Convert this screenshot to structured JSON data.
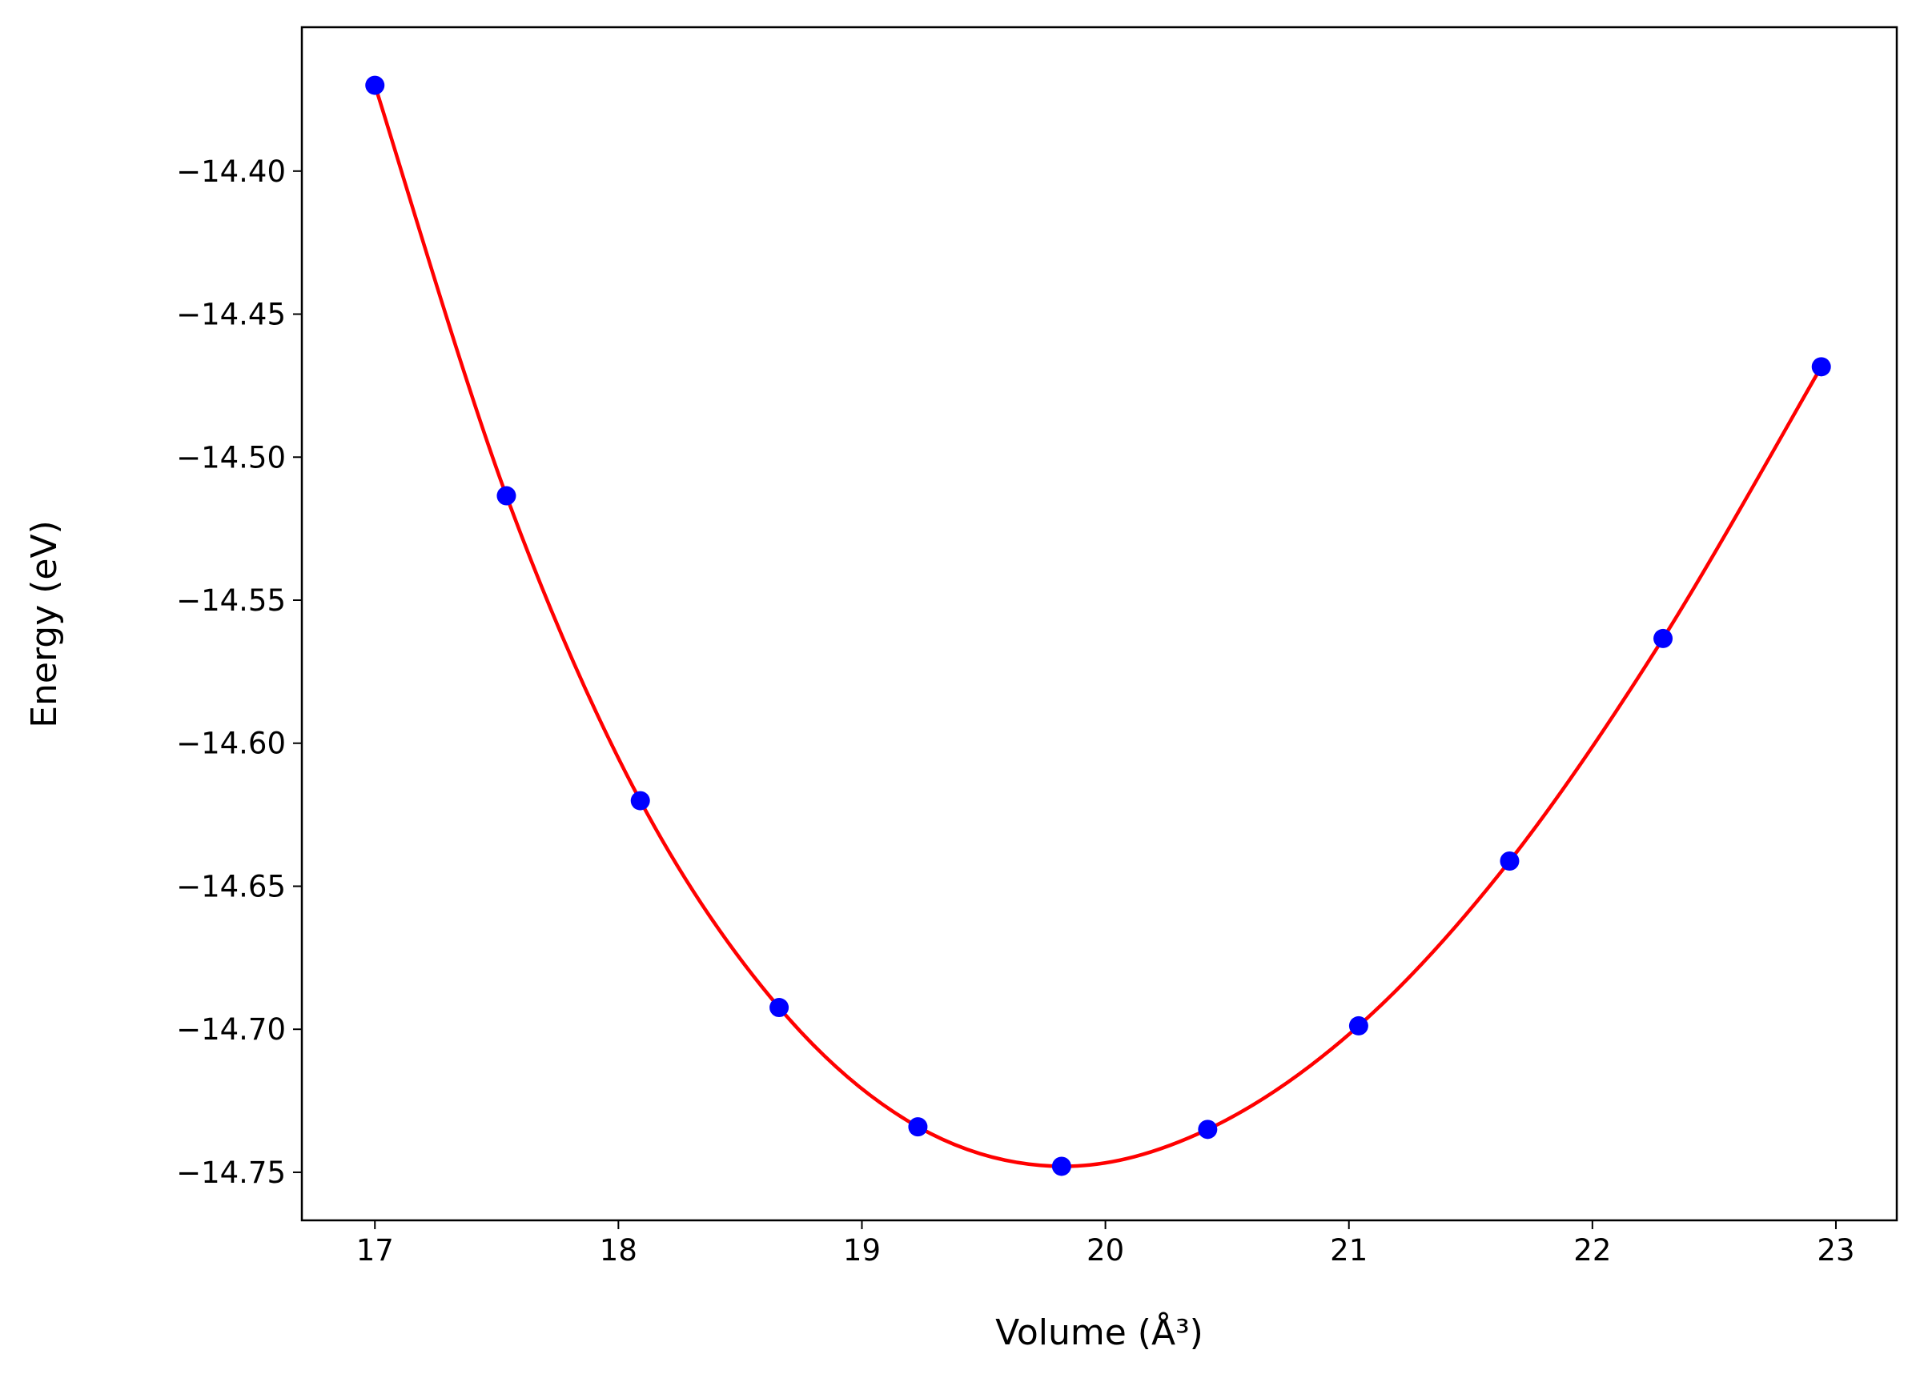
{
  "chart_data": {
    "type": "line",
    "x_label": "Volume (Å³)",
    "y_label": "Energy (eV)",
    "xlim": [
      16.7,
      23.25
    ],
    "ylim": [
      -14.7668,
      -14.3497
    ],
    "xticks": [
      17,
      18,
      19,
      20,
      21,
      22,
      23
    ],
    "yticks": [
      {
        "value": -14.4,
        "label": "−14.40"
      },
      {
        "value": -14.45,
        "label": "−14.45"
      },
      {
        "value": -14.5,
        "label": "−14.50"
      },
      {
        "value": -14.55,
        "label": "−14.55"
      },
      {
        "value": -14.6,
        "label": "−14.60"
      },
      {
        "value": -14.65,
        "label": "−14.65"
      },
      {
        "value": -14.7,
        "label": "−14.70"
      },
      {
        "value": -14.75,
        "label": "−14.75"
      }
    ],
    "x": [
      17.0,
      17.54,
      18.09,
      18.66,
      19.23,
      19.82,
      20.42,
      21.04,
      21.66,
      22.29,
      22.94
    ],
    "series": [
      {
        "line_color": "#ff0000",
        "marker_color": "#0000ff",
        "values": [
          -14.37,
          -14.5135,
          -14.6201,
          -14.6924,
          -14.7341,
          -14.7479,
          -14.735,
          -14.6988,
          -14.6412,
          -14.5634,
          -14.4684
        ]
      }
    ]
  }
}
